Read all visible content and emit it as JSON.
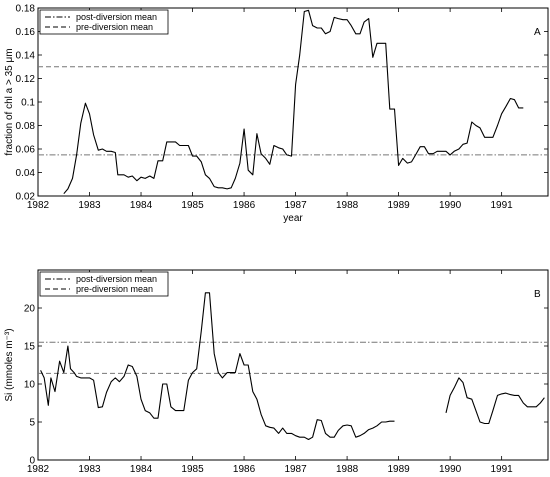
{
  "chart_data": [
    {
      "type": "line",
      "panel_label": "A",
      "xlabel": "year",
      "ylabel": "fraction of chl  a > 35 μm",
      "xlim": [
        1982,
        1991.9
      ],
      "ylim": [
        0.02,
        0.18
      ],
      "x_ticks": [
        1982,
        1983,
        1984,
        1985,
        1986,
        1987,
        1988,
        1989,
        1990,
        1991
      ],
      "y_ticks": [
        0.02,
        0.04,
        0.06,
        0.08,
        0.1,
        0.12,
        0.14,
        0.16,
        0.18
      ],
      "legend": [
        "post-diversion mean",
        "pre-diversion mean"
      ],
      "legend_position": "top-left",
      "reference_lines": [
        {
          "name": "post-diversion mean",
          "style": "dash-dot",
          "value": 0.055
        },
        {
          "name": "pre-diversion mean",
          "style": "dashed",
          "value": 0.13
        }
      ],
      "series": [
        {
          "x": [
            1982.5,
            1982.58,
            1982.67,
            1982.75,
            1982.83,
            1982.92,
            1983.0,
            1983.08,
            1983.17,
            1983.25,
            1983.33,
            1983.42,
            1983.5,
            1983.55,
            1983.67,
            1983.75,
            1983.83,
            1983.92,
            1984.0,
            1984.08,
            1984.17,
            1984.25,
            1984.33,
            1984.42,
            1984.5,
            1984.58,
            1984.67,
            1984.75,
            1984.83,
            1984.92,
            1985.0,
            1985.08,
            1985.17,
            1985.25,
            1985.33,
            1985.42,
            1985.5,
            1985.58,
            1985.67,
            1985.75,
            1985.83,
            1985.92,
            1986.0,
            1986.08,
            1986.17,
            1986.25,
            1986.33,
            1986.42,
            1986.5,
            1986.58,
            1986.67,
            1986.75,
            1986.83,
            1986.92,
            1987.0,
            1987.08,
            1987.17,
            1987.25,
            1987.33,
            1987.42,
            1987.5,
            1987.58,
            1987.67,
            1987.75,
            1987.83,
            1987.92,
            1988.0,
            1988.08,
            1988.17,
            1988.25,
            1988.33,
            1988.42,
            1988.5,
            1988.58,
            1988.67,
            1988.75,
            1988.83,
            1988.92,
            1989.0,
            1989.08,
            1989.17,
            1989.25,
            1989.33,
            1989.42,
            1989.5,
            1989.58,
            1989.67,
            1989.75,
            1989.83,
            1989.92,
            1990.0,
            1990.08,
            1990.17,
            1990.25,
            1990.33,
            1990.42,
            1990.5,
            1990.58,
            1990.67,
            1990.75,
            1990.83,
            1990.92,
            1991.0,
            1991.08,
            1991.17,
            1991.25,
            1991.33,
            1991.42
          ],
          "y": [
            0.022,
            0.026,
            0.035,
            0.055,
            0.082,
            0.099,
            0.09,
            0.072,
            0.059,
            0.06,
            0.058,
            0.058,
            0.057,
            0.038,
            0.038,
            0.036,
            0.037,
            0.033,
            0.036,
            0.035,
            0.037,
            0.035,
            0.05,
            0.05,
            0.066,
            0.066,
            0.066,
            0.063,
            0.063,
            0.063,
            0.054,
            0.054,
            0.049,
            0.038,
            0.035,
            0.028,
            0.027,
            0.027,
            0.026,
            0.027,
            0.035,
            0.048,
            0.077,
            0.042,
            0.038,
            0.073,
            0.056,
            0.052,
            0.047,
            0.063,
            0.061,
            0.06,
            0.055,
            0.054,
            0.115,
            0.14,
            0.177,
            0.178,
            0.165,
            0.163,
            0.163,
            0.158,
            0.16,
            0.172,
            0.171,
            0.17,
            0.17,
            0.165,
            0.158,
            0.158,
            0.168,
            0.171,
            0.138,
            0.15,
            0.15,
            0.15,
            0.094,
            0.094,
            0.046,
            0.052,
            0.048,
            0.049,
            0.055,
            0.062,
            0.062,
            0.056,
            0.056,
            0.058,
            0.058,
            0.058,
            0.055,
            0.058,
            0.06,
            0.064,
            0.065,
            0.083,
            0.08,
            0.078,
            0.07,
            0.07,
            0.07,
            0.08,
            0.09,
            0.096,
            0.103,
            0.102,
            0.095,
            0.095
          ]
        }
      ]
    },
    {
      "type": "line",
      "panel_label": "B",
      "xlabel": "",
      "ylabel": "Si  (mmoles m⁻³)",
      "xlim": [
        1982,
        1991.9
      ],
      "ylim": [
        0,
        25
      ],
      "x_ticks": [
        1982,
        1983,
        1984,
        1985,
        1986,
        1987,
        1988,
        1989,
        1990,
        1991
      ],
      "y_ticks": [
        0,
        5,
        10,
        15,
        20
      ],
      "legend": [
        "post-diversion mean",
        "pre-diversion mean"
      ],
      "legend_position": "top-left",
      "reference_lines": [
        {
          "name": "post-diversion mean",
          "style": "dash-dot",
          "value": 15.5
        },
        {
          "name": "pre-diversion mean",
          "style": "dashed",
          "value": 11.4
        }
      ],
      "series": [
        {
          "x": [
            1982.05,
            1982.12,
            1982.2,
            1982.25,
            1982.33,
            1982.42,
            1982.5,
            1982.58,
            1982.63,
            1982.7,
            1982.75,
            1982.83,
            1982.92,
            1983.0,
            1983.08,
            1983.17,
            1983.25,
            1983.33,
            1983.42,
            1983.5,
            1983.58,
            1983.67,
            1983.75,
            1983.83,
            1983.92,
            1984.0,
            1984.08,
            1984.17,
            1984.25,
            1984.33,
            1984.42,
            1984.5,
            1984.58,
            1984.67,
            1984.75,
            1984.83,
            1984.92,
            1985.0,
            1985.08,
            1985.17,
            1985.25,
            1985.33,
            1985.42,
            1985.5,
            1985.58,
            1985.67,
            1985.75,
            1985.83,
            1985.92,
            1986.0,
            1986.08,
            1986.17,
            1986.25,
            1986.33,
            1986.42,
            1986.5,
            1986.58,
            1986.67,
            1986.75,
            1986.83,
            1986.92,
            1987.0,
            1987.08,
            1987.17,
            1987.25,
            1987.33,
            1987.42,
            1987.5,
            1987.58,
            1987.67,
            1987.75,
            1987.83,
            1987.92,
            1988.0,
            1988.08,
            1988.17,
            1988.25,
            1988.33,
            1988.42,
            1988.5,
            1988.58,
            1988.67,
            1988.75,
            1988.83,
            1988.92
          ],
          "y": [
            11.8,
            10.8,
            7.2,
            10.8,
            9.0,
            13.0,
            11.5,
            15.0,
            12.0,
            11.5,
            11.0,
            10.8,
            10.8,
            10.8,
            10.5,
            6.9,
            7.0,
            8.9,
            10.3,
            10.8,
            10.3,
            11.0,
            12.5,
            12.3,
            11.0,
            8.0,
            6.5,
            6.2,
            5.5,
            5.5,
            10.0,
            10.0,
            7.0,
            6.5,
            6.5,
            6.5,
            10.5,
            11.5,
            12.0,
            17.0,
            22.0,
            22.0,
            14.0,
            11.5,
            10.8,
            11.5,
            11.5,
            11.5,
            14.0,
            12.5,
            12.5,
            9.0,
            8.0,
            6.0,
            4.5,
            4.3,
            4.2,
            3.5,
            4.2,
            3.5,
            3.5,
            3.2,
            3.0,
            3.0,
            2.7,
            3.0,
            5.3,
            5.2,
            3.5,
            3.0,
            3.0,
            3.9,
            4.5,
            4.6,
            4.5,
            3.0,
            3.2,
            3.5,
            4.0,
            4.2,
            4.5,
            5.0,
            5.0,
            5.1,
            5.1
          ]
        },
        {
          "x": [
            1989.92,
            1990.0,
            1990.08,
            1990.17,
            1990.25,
            1990.33,
            1990.42,
            1990.5,
            1990.58,
            1990.67,
            1990.75,
            1990.83,
            1990.92,
            1991.0,
            1991.08,
            1991.17,
            1991.25,
            1991.33,
            1991.42,
            1991.5,
            1991.58,
            1991.67,
            1991.75,
            1991.83
          ],
          "y": [
            6.2,
            8.5,
            9.5,
            10.8,
            10.2,
            8.2,
            8.0,
            6.5,
            5.0,
            4.8,
            4.8,
            6.5,
            8.5,
            8.7,
            8.8,
            8.6,
            8.5,
            8.5,
            7.5,
            7.0,
            7.0,
            7.0,
            7.5,
            8.2
          ]
        }
      ]
    }
  ]
}
